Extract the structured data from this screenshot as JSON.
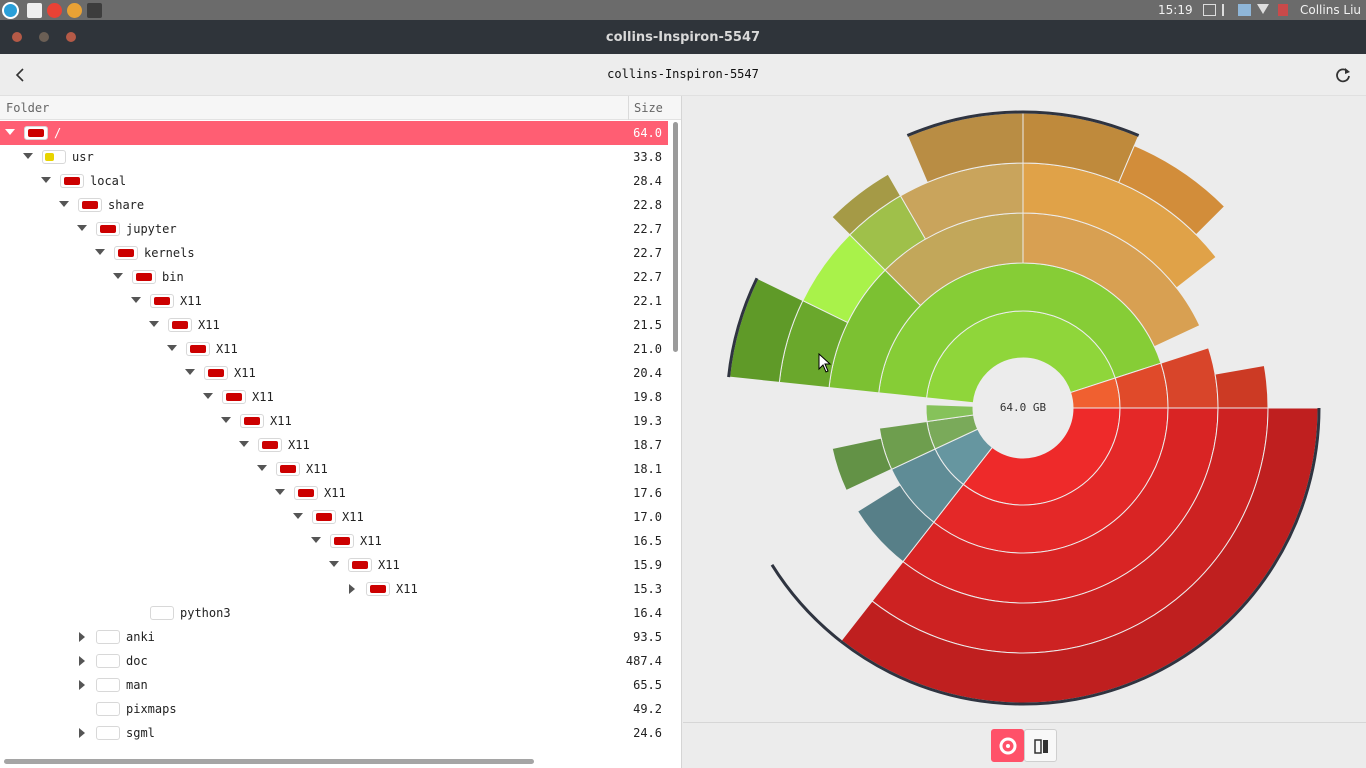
{
  "system": {
    "clock": "15:19",
    "user": "Collins Liu"
  },
  "window": {
    "title": "collins-Inspiron-5547",
    "location": "collins-Inspiron-5547"
  },
  "tree": {
    "header_folder": "Folder",
    "header_size": "Size",
    "rows": [
      {
        "name": "/",
        "size": "64.0",
        "depth": 0,
        "state": "open",
        "swatch": "#cc0000",
        "selected": true
      },
      {
        "name": "usr",
        "size": "33.8",
        "depth": 1,
        "state": "open",
        "swatch": "#e8d400"
      },
      {
        "name": "local",
        "size": "28.4",
        "depth": 2,
        "state": "open",
        "swatch": "#cc0000"
      },
      {
        "name": "share",
        "size": "22.8",
        "depth": 3,
        "state": "open",
        "swatch": "#cc0000"
      },
      {
        "name": "jupyter",
        "size": "22.7",
        "depth": 4,
        "state": "open",
        "swatch": "#cc0000"
      },
      {
        "name": "kernels",
        "size": "22.7",
        "depth": 5,
        "state": "open",
        "swatch": "#cc0000"
      },
      {
        "name": "bin",
        "size": "22.7",
        "depth": 6,
        "state": "open",
        "swatch": "#cc0000"
      },
      {
        "name": "X11",
        "size": "22.1",
        "depth": 7,
        "state": "open",
        "swatch": "#cc0000"
      },
      {
        "name": "X11",
        "size": "21.5",
        "depth": 8,
        "state": "open",
        "swatch": "#cc0000"
      },
      {
        "name": "X11",
        "size": "21.0",
        "depth": 9,
        "state": "open",
        "swatch": "#cc0000"
      },
      {
        "name": "X11",
        "size": "20.4",
        "depth": 10,
        "state": "open",
        "swatch": "#cc0000"
      },
      {
        "name": "X11",
        "size": "19.8",
        "depth": 11,
        "state": "open",
        "swatch": "#cc0000"
      },
      {
        "name": "X11",
        "size": "19.3",
        "depth": 12,
        "state": "open",
        "swatch": "#cc0000"
      },
      {
        "name": "X11",
        "size": "18.7",
        "depth": 13,
        "state": "open",
        "swatch": "#cc0000"
      },
      {
        "name": "X11",
        "size": "18.1",
        "depth": 14,
        "state": "open",
        "swatch": "#cc0000"
      },
      {
        "name": "X11",
        "size": "17.6",
        "depth": 15,
        "state": "open",
        "swatch": "#cc0000"
      },
      {
        "name": "X11",
        "size": "17.0",
        "depth": 16,
        "state": "open",
        "swatch": "#cc0000"
      },
      {
        "name": "X11",
        "size": "16.5",
        "depth": 17,
        "state": "open",
        "swatch": "#cc0000"
      },
      {
        "name": "X11",
        "size": "15.9",
        "depth": 18,
        "state": "open",
        "swatch": "#cc0000"
      },
      {
        "name": "X11",
        "size": "15.3",
        "depth": 19,
        "state": "closed",
        "swatch": "#cc0000"
      },
      {
        "name": "python3",
        "size": "16.4",
        "depth": 7,
        "state": "none",
        "swatch": "#ffffff"
      },
      {
        "name": "anki",
        "size": "93.5",
        "depth": 4,
        "state": "closed",
        "swatch": "#ffffff"
      },
      {
        "name": "doc",
        "size": "487.4",
        "depth": 4,
        "state": "closed",
        "swatch": "#ffffff"
      },
      {
        "name": "man",
        "size": "65.5",
        "depth": 4,
        "state": "closed",
        "swatch": "#ffffff"
      },
      {
        "name": "pixmaps",
        "size": "49.2",
        "depth": 4,
        "state": "none",
        "swatch": "#ffffff"
      },
      {
        "name": "sgml",
        "size": "24.6",
        "depth": 4,
        "state": "closed",
        "swatch": "#ffffff"
      }
    ]
  },
  "chart": {
    "center_label": "64.0 GB"
  },
  "icons": {
    "back": "back-arrow-icon",
    "refresh": "refresh-icon",
    "ring_view": "ring-chart-icon",
    "treemap_view": "treemap-icon"
  },
  "colors": {
    "selection": "#ff5e73",
    "accent_button": "#ff5169"
  }
}
